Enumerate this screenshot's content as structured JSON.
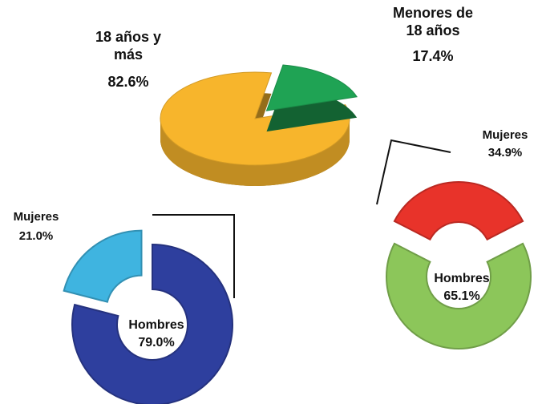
{
  "chart_data": [
    {
      "type": "pie",
      "categories": [
        "18 años y más",
        "Menores de 18 años"
      ],
      "values": [
        82.6,
        17.4
      ],
      "value_labels": [
        "82.6%",
        "17.4%"
      ],
      "colors": [
        "#f7b52c",
        "#1fa354"
      ]
    },
    {
      "type": "donut",
      "categories": [
        "Mujeres",
        "Hombres"
      ],
      "values": [
        21.0,
        79.0
      ],
      "value_labels": [
        "21.0%",
        "79.0%"
      ],
      "colors": [
        "#3fb4e0",
        "#2e3f9e"
      ]
    },
    {
      "type": "donut",
      "categories": [
        "Mujeres",
        "Hombres"
      ],
      "values": [
        34.9,
        65.1
      ],
      "value_labels": [
        "34.9%",
        "65.1%"
      ],
      "colors": [
        "#e8332a",
        "#8cc65a"
      ]
    }
  ]
}
